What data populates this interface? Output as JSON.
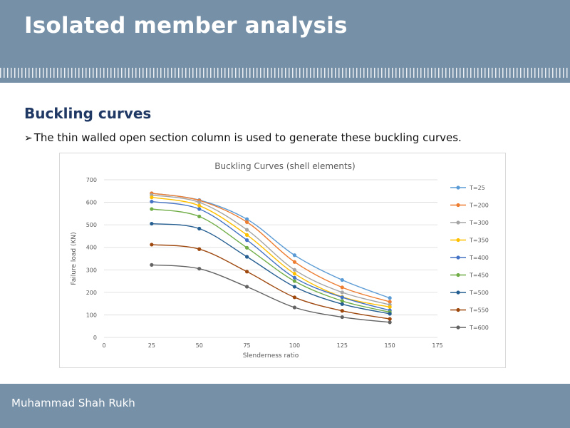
{
  "slide": {
    "title": "Isolated member analysis",
    "subtitle": "Buckling curves",
    "bullet_marker": "➢",
    "bullet_text": "The thin walled open section column is used to generate these buckling curves.",
    "author": "Muhammad Shah Rukh"
  },
  "colors": {
    "header_bg": "#7690a7",
    "subtitle": "#1f3864"
  },
  "chart_data": {
    "type": "line",
    "title": "Buckling Curves (shell elements)",
    "xlabel": "Slenderness ratio",
    "ylabel": "Failure load (KN)",
    "xlim": [
      0,
      175
    ],
    "ylim": [
      0,
      700
    ],
    "xticks": [
      0,
      25,
      50,
      75,
      100,
      125,
      150,
      175
    ],
    "yticks": [
      0,
      100,
      200,
      300,
      400,
      500,
      600,
      700
    ],
    "grid": "horizontal",
    "legend_position": "right",
    "x": [
      25,
      50,
      75,
      100,
      125,
      150
    ],
    "series": [
      {
        "name": "T=25",
        "color": "#5b9bd5",
        "values": [
          640,
          610,
          525,
          365,
          255,
          175
        ]
      },
      {
        "name": "T=200",
        "color": "#ed7d31",
        "values": [
          640,
          608,
          512,
          335,
          222,
          158
        ]
      },
      {
        "name": "T=300",
        "color": "#a5a5a5",
        "values": [
          632,
          600,
          478,
          300,
          200,
          145
        ]
      },
      {
        "name": "T=350",
        "color": "#ffc000",
        "values": [
          622,
          585,
          455,
          283,
          180,
          135
        ]
      },
      {
        "name": "T=400",
        "color": "#4472c4",
        "values": [
          603,
          570,
          432,
          265,
          178,
          120
        ]
      },
      {
        "name": "T=450",
        "color": "#70ad47",
        "values": [
          570,
          537,
          398,
          250,
          162,
          112
        ]
      },
      {
        "name": "T=500",
        "color": "#255e91",
        "values": [
          505,
          483,
          358,
          225,
          148,
          105
        ]
      },
      {
        "name": "T=550",
        "color": "#9e480e",
        "values": [
          412,
          392,
          292,
          178,
          118,
          82
        ]
      },
      {
        "name": "T=600",
        "color": "#636363",
        "values": [
          322,
          305,
          225,
          133,
          90,
          67
        ]
      }
    ]
  }
}
